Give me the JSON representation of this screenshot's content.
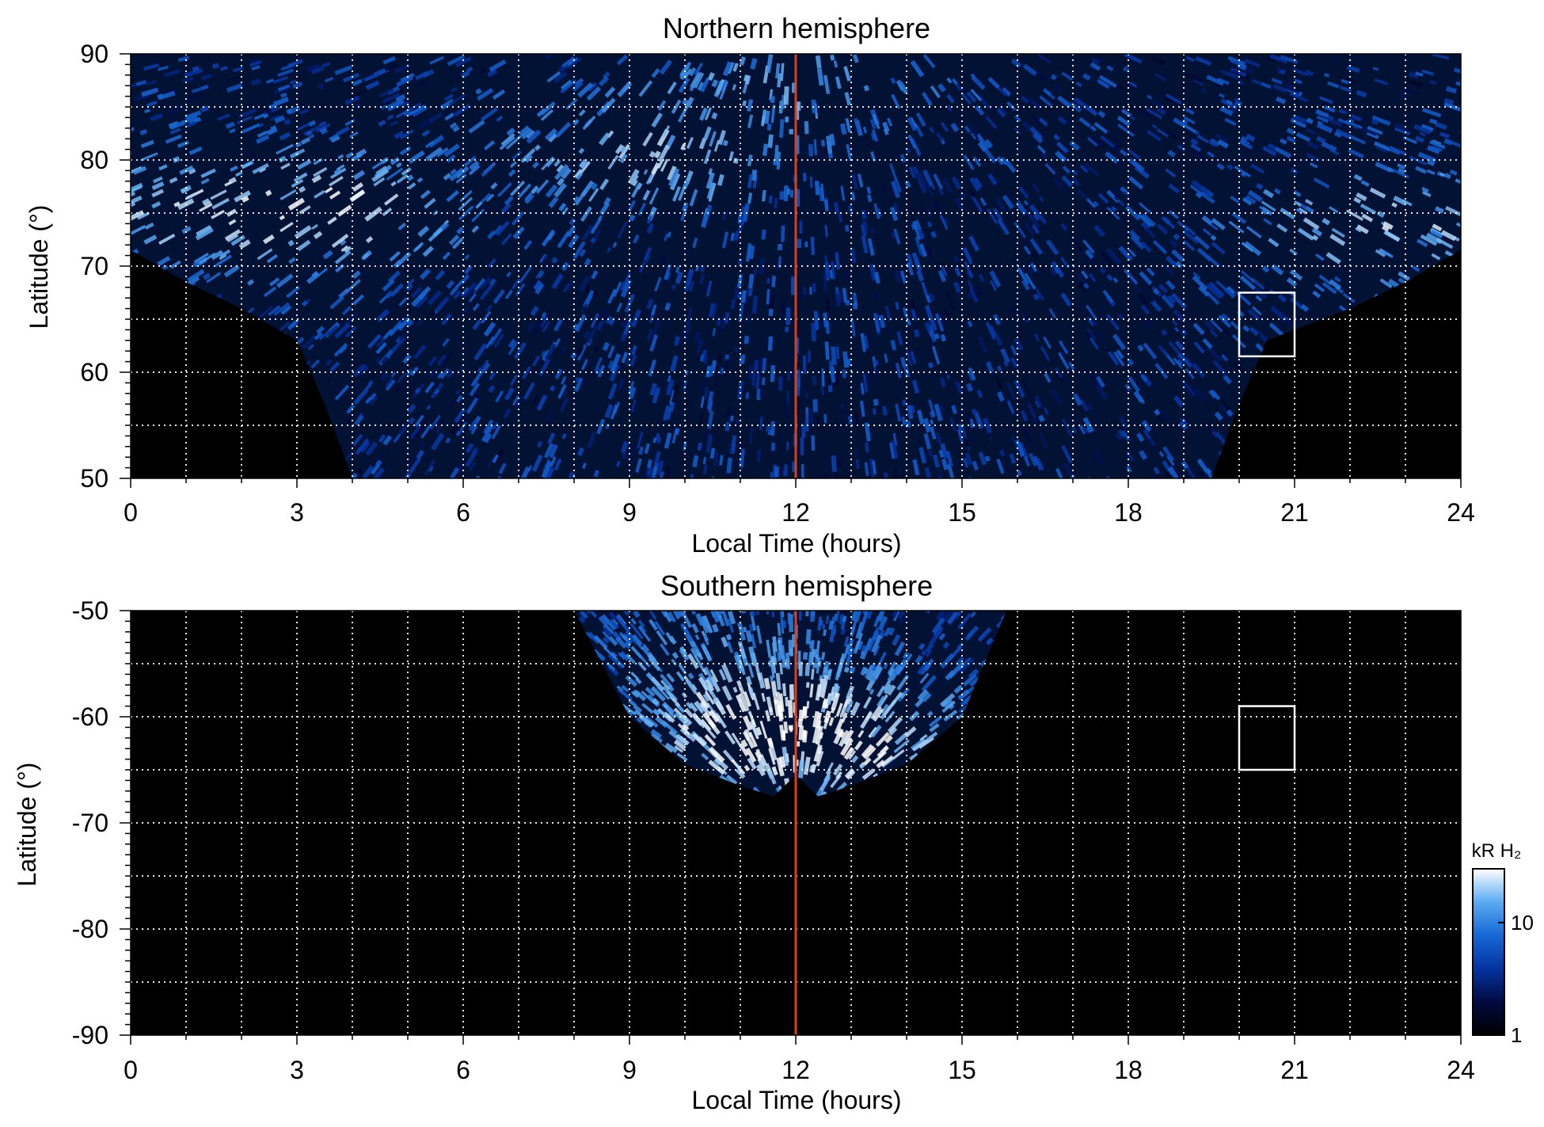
{
  "chart_data": [
    {
      "type": "heatmap",
      "title": "Northern hemisphere",
      "xlabel": "Local Time (hours)",
      "ylabel": "Latitude (°)",
      "xlim": [
        0,
        24
      ],
      "ylim": [
        50,
        90
      ],
      "x_ticks": [
        "0",
        "3",
        "6",
        "9",
        "12",
        "15",
        "18",
        "21",
        "24"
      ],
      "y_ticks": [
        "50",
        "60",
        "70",
        "80",
        "90"
      ],
      "grid": true,
      "vertical_line": {
        "x": 12,
        "color": "#d9401a"
      },
      "box": {
        "x": [
          20,
          21
        ],
        "y": [
          61.5,
          67.5
        ]
      },
      "coverage_edge": [
        [
          0,
          71.5
        ],
        [
          1,
          68.5
        ],
        [
          2,
          66
        ],
        [
          3,
          63
        ],
        [
          3.5,
          57
        ],
        [
          4,
          50
        ],
        [
          19.5,
          50
        ],
        [
          20,
          57
        ],
        [
          20.5,
          63
        ],
        [
          22,
          66
        ],
        [
          23,
          68.5
        ],
        [
          24,
          71.5
        ]
      ],
      "bright_regions": [
        {
          "x": 3.5,
          "y": 75.5,
          "level": 25
        },
        {
          "x": 22.5,
          "y": 74,
          "level": 20
        },
        {
          "x": 0.5,
          "y": 76,
          "level": 15
        },
        {
          "x": 9.2,
          "y": 81,
          "level": 18
        },
        {
          "x": 12,
          "y": 88.5,
          "level": 14
        }
      ]
    },
    {
      "type": "heatmap",
      "title": "Southern hemisphere",
      "xlabel": "Local Time (hours)",
      "ylabel": "Latitude (°)",
      "xlim": [
        0,
        24
      ],
      "ylim": [
        -90,
        -50
      ],
      "x_ticks": [
        "0",
        "3",
        "6",
        "9",
        "12",
        "15",
        "18",
        "21",
        "24"
      ],
      "y_ticks": [
        "-50",
        "-60",
        "-70",
        "-80",
        "-90"
      ],
      "grid": true,
      "vertical_line": {
        "x": 12,
        "color": "#d9401a"
      },
      "box": {
        "x": [
          20,
          21
        ],
        "y": [
          -65,
          -59
        ]
      },
      "coverage_edge": [
        [
          8,
          -50
        ],
        [
          9,
          -60
        ],
        [
          10,
          -64.5
        ],
        [
          11,
          -66.5
        ],
        [
          11.6,
          -67.5
        ],
        [
          12,
          -65.5
        ],
        [
          12.4,
          -67.5
        ],
        [
          13,
          -66.5
        ],
        [
          14,
          -64.5
        ],
        [
          15,
          -60
        ],
        [
          15.8,
          -50
        ]
      ],
      "bright_regions": [
        {
          "x": 11.5,
          "y": -62,
          "level": 25
        },
        {
          "x": 12.8,
          "y": -63,
          "level": 18
        },
        {
          "x": 10.8,
          "y": -55,
          "level": 10
        }
      ]
    }
  ],
  "colorbar": {
    "title": "kR H₂",
    "tick_labels": [
      "10",
      "1"
    ],
    "range": [
      1,
      30
    ],
    "scale": "log",
    "colors": [
      "#000000",
      "#000a40",
      "#0533a0",
      "#1667d6",
      "#5aaaf2",
      "#ffffff"
    ]
  }
}
